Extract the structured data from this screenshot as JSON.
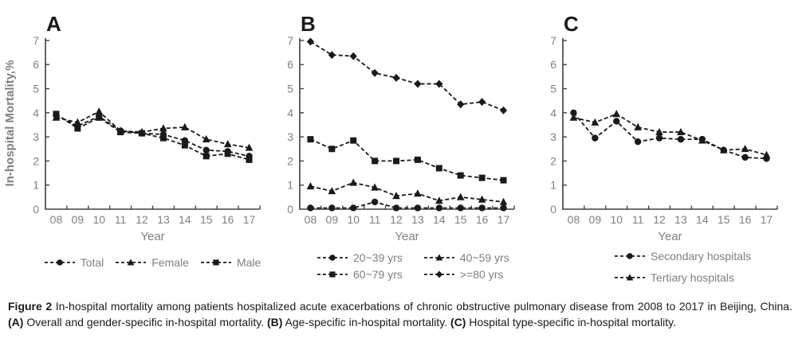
{
  "colors": {
    "series": "#1a1a1a",
    "axis": "#3f3f3f",
    "tick_label": "#808080",
    "legend_text": "#7f7f7f",
    "caption_text": "#1a1a1a",
    "background": "#ffffff"
  },
  "caption": {
    "fig_label": "Figure 2",
    "t1": " In-hospital mortality among patients hospitalized acute exacerbations of chronic obstructive pulmonary disease from 2008 to 2017 in Beijing, China. ",
    "a": "(A)",
    "t2": " Overall and gender-specific in-hospital mortality. ",
    "b": "(B)",
    "t3": " Age-specific in-hospital mortality. ",
    "c": "(C)",
    "t4": " Hospital type-specific in-hospital mortality."
  },
  "chart_data": [
    {
      "type": "line",
      "panel_letter": "A",
      "title": "Overall and gender-specific in-hospital mortality",
      "xlabel": "Year",
      "ylabel": "In-hospital Mortality,%",
      "ylim": [
        0,
        7
      ],
      "yticks": [
        0,
        1,
        2,
        3,
        4,
        5,
        6,
        7
      ],
      "grid": false,
      "legend_position": "bottom-center-row",
      "line_style": "dashed-black",
      "categories": [
        "08",
        "09",
        "10",
        "11",
        "12",
        "13",
        "14",
        "15",
        "16",
        "17"
      ],
      "series": [
        {
          "name": "Total",
          "marker": "circle",
          "values": [
            3.9,
            3.45,
            3.85,
            3.25,
            3.15,
            3.1,
            2.85,
            2.45,
            2.4,
            2.2
          ]
        },
        {
          "name": "Female",
          "marker": "triangle",
          "values": [
            3.8,
            3.6,
            4.05,
            3.25,
            3.2,
            3.35,
            3.4,
            2.9,
            2.7,
            2.55
          ]
        },
        {
          "name": "Male",
          "marker": "square",
          "values": [
            3.95,
            3.35,
            3.8,
            3.2,
            3.15,
            2.95,
            2.65,
            2.2,
            2.3,
            2.05
          ]
        }
      ]
    },
    {
      "type": "line",
      "panel_letter": "B",
      "title": "Age-specific in-hospital mortality",
      "xlabel": "Year",
      "ylabel": "",
      "ylim": [
        0,
        7
      ],
      "yticks": [
        0,
        1,
        2,
        3,
        4,
        5,
        6,
        7
      ],
      "grid": false,
      "legend_position": "bottom-two-columns",
      "line_style": "dashed-black",
      "categories": [
        "08",
        "09",
        "10",
        "11",
        "12",
        "13",
        "14",
        "15",
        "16",
        "17"
      ],
      "series": [
        {
          "name": "20~39 yrs",
          "marker": "circle",
          "values": [
            0.05,
            0.05,
            0.05,
            0.3,
            0.05,
            0.05,
            0.05,
            0.05,
            0.05,
            0.05
          ]
        },
        {
          "name": "40~59 yrs",
          "marker": "triangle",
          "values": [
            0.95,
            0.75,
            1.1,
            0.9,
            0.55,
            0.65,
            0.35,
            0.5,
            0.4,
            0.3
          ]
        },
        {
          "name": "60~79 yrs",
          "marker": "square",
          "values": [
            2.9,
            2.5,
            2.85,
            2.0,
            2.0,
            2.05,
            1.7,
            1.4,
            1.3,
            1.2
          ]
        },
        {
          "name": ">=80 yrs",
          "marker": "diamond",
          "values": [
            6.95,
            6.4,
            6.35,
            5.65,
            5.45,
            5.2,
            5.2,
            4.35,
            4.45,
            4.1
          ]
        }
      ]
    },
    {
      "type": "line",
      "panel_letter": "C",
      "title": "Hospital type-specific in-hospital mortality",
      "xlabel": "Year",
      "ylabel": "",
      "ylim": [
        0,
        7
      ],
      "yticks": [
        0,
        1,
        2,
        3,
        4,
        5,
        6,
        7
      ],
      "grid": false,
      "legend_position": "bottom-stacked-left",
      "line_style": "dashed-black",
      "categories": [
        "08",
        "09",
        "10",
        "11",
        "12",
        "13",
        "14",
        "15",
        "16",
        "17"
      ],
      "series": [
        {
          "name": "Secondary hospitals",
          "marker": "circle",
          "values": [
            4.0,
            2.95,
            3.65,
            2.8,
            2.95,
            2.9,
            2.9,
            2.45,
            2.15,
            2.1
          ]
        },
        {
          "name": "Tertiary hospitals",
          "marker": "triangle",
          "values": [
            3.8,
            3.6,
            3.95,
            3.4,
            3.2,
            3.2,
            2.85,
            2.45,
            2.5,
            2.25
          ]
        }
      ]
    }
  ]
}
